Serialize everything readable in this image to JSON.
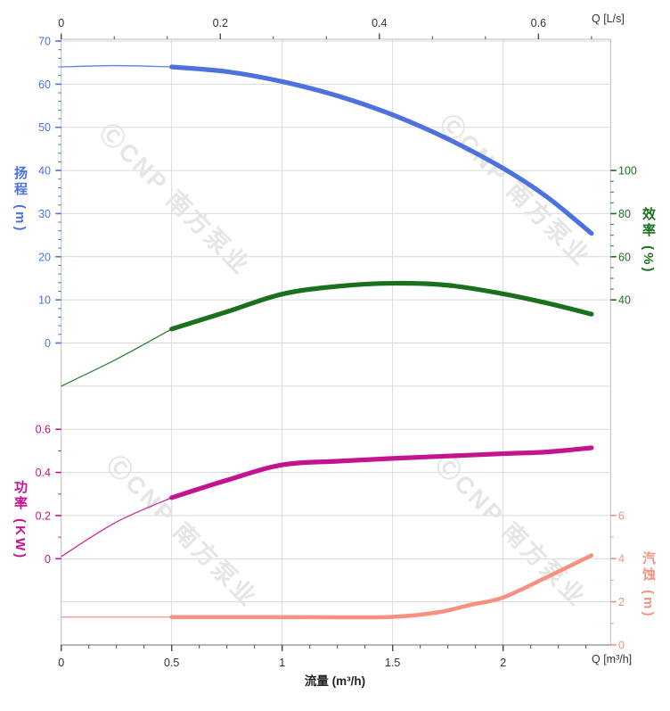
{
  "watermark": {
    "text": "ⒸCNP 南方泵业"
  },
  "axis_titles": {
    "head": "扬程 (m)",
    "efficiency": "效率 (%)",
    "power": "功率 (KW)",
    "npsh": "汽蚀 (m)",
    "flow_bottom": "流量 (m³/h)",
    "q_top": "Q [L/s]",
    "q_bottom": "Q [m³/h]"
  },
  "chart_data": {
    "type": "line",
    "title": "",
    "xlabel_bottom": "流量 (m³/h)",
    "x_bottom": {
      "label": "Q [m³/h]",
      "ticks": [
        0,
        0.5,
        1,
        1.5,
        2
      ],
      "minor_step": 0.125,
      "range": [
        0,
        2.487
      ],
      "gridlines": true
    },
    "x_top": {
      "label": "Q [L/s]",
      "ticks": [
        0,
        0.2,
        0.4,
        0.6
      ],
      "minor_per_major": 3,
      "range": [
        0,
        0.691
      ]
    },
    "y_axes": {
      "head": {
        "label": "扬程 (m)",
        "side": "left",
        "color": "#4d72e0",
        "ticks": [
          70,
          60,
          50,
          40,
          30,
          20,
          10,
          0
        ],
        "minor_step": 2,
        "minor_range": [
          0,
          70
        ]
      },
      "efficiency": {
        "label": "效率 (%)",
        "side": "right",
        "color": "#1b701b",
        "ticks": [
          100,
          80,
          60,
          40
        ],
        "minor_step": 5,
        "minor_range": [
          40,
          100
        ]
      },
      "power": {
        "label": "功率 (KW)",
        "side": "left",
        "color": "#c2148e",
        "ticks": [
          0.6,
          0.4,
          0.2,
          0
        ],
        "minor_step": 0.1,
        "minor_range": [
          0,
          0.6
        ]
      },
      "npsh": {
        "label": "汽蚀 (m)",
        "side": "right",
        "color": "#f4917f",
        "ticks": [
          6,
          4,
          2,
          0
        ],
        "minor_step": 1,
        "minor_range": [
          0,
          6
        ]
      }
    },
    "series": [
      {
        "name": "head",
        "axis": "head",
        "color": "#4d72e0",
        "split_q": 0.5,
        "points": [
          [
            0,
            64.0
          ],
          [
            0.25,
            64.3
          ],
          [
            0.5,
            64.0
          ],
          [
            0.75,
            62.9
          ],
          [
            1.0,
            60.6
          ],
          [
            1.25,
            57.3
          ],
          [
            1.5,
            52.9
          ],
          [
            1.75,
            47.3
          ],
          [
            2.0,
            40.5
          ],
          [
            2.2,
            33.8
          ],
          [
            2.4,
            25.4
          ]
        ]
      },
      {
        "name": "efficiency",
        "axis": "efficiency",
        "color": "#1b701b",
        "split_q": 0.5,
        "points": [
          [
            0,
            0
          ],
          [
            0.25,
            12.5
          ],
          [
            0.5,
            26.5
          ],
          [
            0.75,
            34.5
          ],
          [
            1.0,
            42.7
          ],
          [
            1.25,
            46.3
          ],
          [
            1.5,
            47.7
          ],
          [
            1.75,
            46.8
          ],
          [
            2.0,
            42.8
          ],
          [
            2.2,
            38.5
          ],
          [
            2.4,
            33.4
          ]
        ]
      },
      {
        "name": "power",
        "axis": "power",
        "color": "#c2148e",
        "split_q": 0.5,
        "points": [
          [
            0,
            0.01
          ],
          [
            0.25,
            0.17
          ],
          [
            0.5,
            0.283
          ],
          [
            0.75,
            0.364
          ],
          [
            1.0,
            0.435
          ],
          [
            1.25,
            0.452
          ],
          [
            1.5,
            0.465
          ],
          [
            1.75,
            0.476
          ],
          [
            2.0,
            0.487
          ],
          [
            2.2,
            0.495
          ],
          [
            2.4,
            0.514
          ]
        ]
      },
      {
        "name": "npsh",
        "axis": "npsh",
        "color": "#f4917f",
        "split_q": 0.5,
        "points": [
          [
            0,
            1.29
          ],
          [
            0.5,
            1.29
          ],
          [
            1.0,
            1.29
          ],
          [
            1.25,
            1.28
          ],
          [
            1.5,
            1.3
          ],
          [
            1.7,
            1.5
          ],
          [
            1.85,
            1.85
          ],
          [
            2.0,
            2.2
          ],
          [
            2.2,
            3.15
          ],
          [
            2.4,
            4.15
          ]
        ]
      }
    ]
  }
}
